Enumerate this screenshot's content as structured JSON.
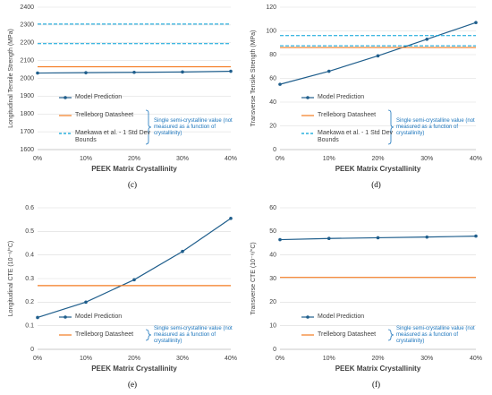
{
  "chart_data": [
    {
      "type": "line",
      "label": "(c)",
      "xlabel": "PEEK Matrix Crystallinity",
      "ylabel": "Longitudinal Tensile Strength (MPa)",
      "categories": [
        "0%",
        "10%",
        "20%",
        "30%",
        "40%"
      ],
      "ylim": [
        1600,
        2400
      ],
      "yticks": [
        1600,
        1700,
        1800,
        1900,
        2000,
        2100,
        2200,
        2300,
        2400
      ],
      "grid": true,
      "note": "Single semi-crystalline value (not measured as a function of crystallinity)",
      "series": [
        {
          "name": "Model Prediction",
          "color": "#1f5e8c",
          "values": [
            2030,
            2032,
            2034,
            2036,
            2040
          ]
        },
        {
          "name": "Trelleborg Datasheet",
          "color": "#f47b20",
          "hline": 2065
        },
        {
          "name": "Maekawa et al. - 1 Std Dev Bounds",
          "color": "#00a0d8",
          "dashed": true,
          "hlines": [
            2195,
            2305
          ]
        }
      ]
    },
    {
      "type": "line",
      "label": "(d)",
      "xlabel": "PEEK Matrix Crystallinity",
      "ylabel": "Transverse Tensile Strength (MPa)",
      "categories": [
        "0%",
        "10%",
        "20%",
        "30%",
        "40%"
      ],
      "ylim": [
        0,
        120
      ],
      "yticks": [
        0,
        20,
        40,
        60,
        80,
        100,
        120
      ],
      "grid": true,
      "note": "Single semi-crystalline value (not measured as a function of crystallinity)",
      "series": [
        {
          "name": "Model Prediction",
          "color": "#1f5e8c",
          "values": [
            55,
            66,
            79,
            93,
            107
          ]
        },
        {
          "name": "Trelleborg Datasheet",
          "color": "#f47b20",
          "hline": 86
        },
        {
          "name": "Maekawa et al. - 1 Std Dev Bounds",
          "color": "#00a0d8",
          "dashed": true,
          "hlines": [
            87.5,
            96
          ]
        }
      ]
    },
    {
      "type": "line",
      "label": "(e)",
      "xlabel": "PEEK Matrix Crystallinity",
      "ylabel": "Longitudinal CTE (10⁻⁶/°C)",
      "categories": [
        "0%",
        "10%",
        "20%",
        "30%",
        "40%"
      ],
      "ylim": [
        0,
        0.6
      ],
      "yticks": [
        0,
        0.1,
        0.2,
        0.3,
        0.4,
        0.5,
        0.6
      ],
      "grid": true,
      "note": "Single semi-crystalline value (not measured as a function of crystallinity)",
      "series": [
        {
          "name": "Model Prediction",
          "color": "#1f5e8c",
          "values": [
            0.135,
            0.2,
            0.295,
            0.415,
            0.555
          ]
        },
        {
          "name": "Trelleborg Datasheet",
          "color": "#f47b20",
          "hline": 0.27
        }
      ]
    },
    {
      "type": "line",
      "label": "(f)",
      "xlabel": "PEEK Matrix Crystallinity",
      "ylabel": "Transverse CTE (10⁻⁶/°C)",
      "categories": [
        "0%",
        "10%",
        "20%",
        "30%",
        "40%"
      ],
      "ylim": [
        0,
        60
      ],
      "yticks": [
        0,
        10,
        20,
        30,
        40,
        50,
        60
      ],
      "grid": true,
      "note": "Single semi-crystalline value (not measured as a function of crystallinity)",
      "series": [
        {
          "name": "Model Prediction",
          "color": "#1f5e8c",
          "values": [
            46.5,
            47,
            47.3,
            47.6,
            48
          ]
        },
        {
          "name": "Trelleborg Datasheet",
          "color": "#f47b20",
          "hline": 30.5
        }
      ]
    }
  ]
}
